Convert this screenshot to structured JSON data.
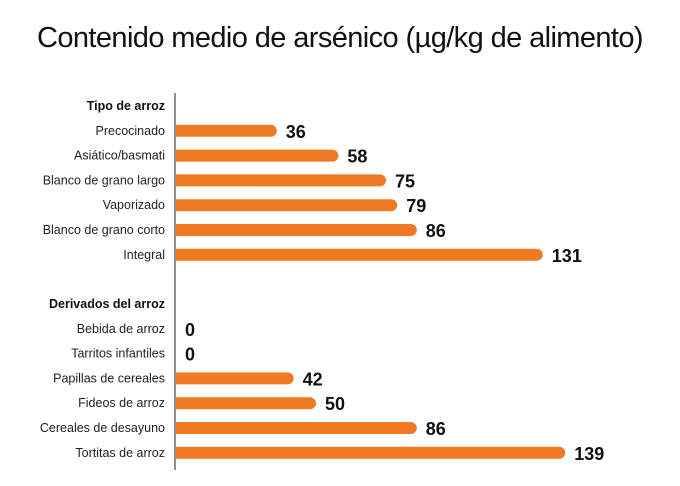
{
  "chart_data": {
    "type": "bar",
    "orientation": "horizontal",
    "title": "Contenido medio de arsénico (µg/kg de alimento)",
    "bar_color": "#F07A24",
    "groups": [
      {
        "name": "Tipo de arroz",
        "categories": [
          "Precocinado",
          "Asiático/basmati",
          "Blanco de grano largo",
          "Vaporizado",
          "Blanco de grano corto",
          "Integral"
        ],
        "values": [
          36,
          58,
          75,
          79,
          86,
          131
        ]
      },
      {
        "name": "Derivados del arroz",
        "categories": [
          "Bebida de arroz",
          "Tarritos infantiles",
          "Papillas de cereales",
          "Fideos de arroz",
          "Cereales de desayuno",
          "Tortitas de arroz"
        ],
        "values": [
          0,
          0,
          42,
          50,
          86,
          139
        ]
      }
    ],
    "xlim": [
      0,
      139
    ],
    "grid": false,
    "data_labels": true
  }
}
